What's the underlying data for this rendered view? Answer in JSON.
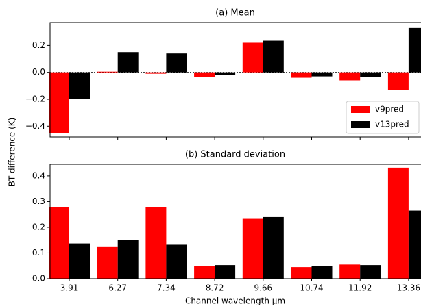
{
  "chart_data": [
    {
      "type": "bar",
      "title": "(a) Mean",
      "ylabel": "BT difference (K)",
      "categories": [
        null,
        null,
        null,
        null,
        null,
        null,
        null,
        null
      ],
      "series": [
        {
          "name": "v9pred",
          "color": "#ff0000",
          "values": [
            -0.45,
            0.005,
            -0.01,
            -0.035,
            0.22,
            -0.04,
            -0.06,
            -0.13
          ]
        },
        {
          "name": "v13pred",
          "color": "#000000",
          "values": [
            -0.2,
            0.15,
            0.14,
            -0.02,
            0.235,
            -0.03,
            -0.035,
            0.33
          ]
        }
      ],
      "ylim": [
        -0.48,
        0.37
      ],
      "yticks": [
        {
          "value": -0.4,
          "label": "−0.4"
        },
        {
          "value": -0.2,
          "label": "−0.2"
        },
        {
          "value": 0,
          "label": "0.0"
        },
        0.2
      ],
      "legend": "lower right"
    },
    {
      "type": "bar",
      "title": "(b) Standard deviation",
      "xlabel": "Channel wavelength μm",
      "categories": [
        "3.91",
        "6.27",
        "7.34",
        "8.72",
        "9.66",
        "10.74",
        "11.92",
        "13.36"
      ],
      "series": [
        {
          "color": "#ff0000",
          "values": [
            0.278,
            0.123,
            0.278,
            0.048,
            0.233,
            0.045,
            0.055,
            0.432
          ]
        },
        {
          "color": "#000000",
          "values": [
            0.137,
            0.15,
            0.132,
            0.053,
            0.24,
            0.048,
            0.053,
            0.265
          ]
        }
      ],
      "ylim": [
        0,
        0.445
      ],
      "yticks": [
        {
          "value": 0,
          "label": "0.0"
        },
        0.1,
        0.2,
        0.3,
        0.4
      ]
    }
  ]
}
